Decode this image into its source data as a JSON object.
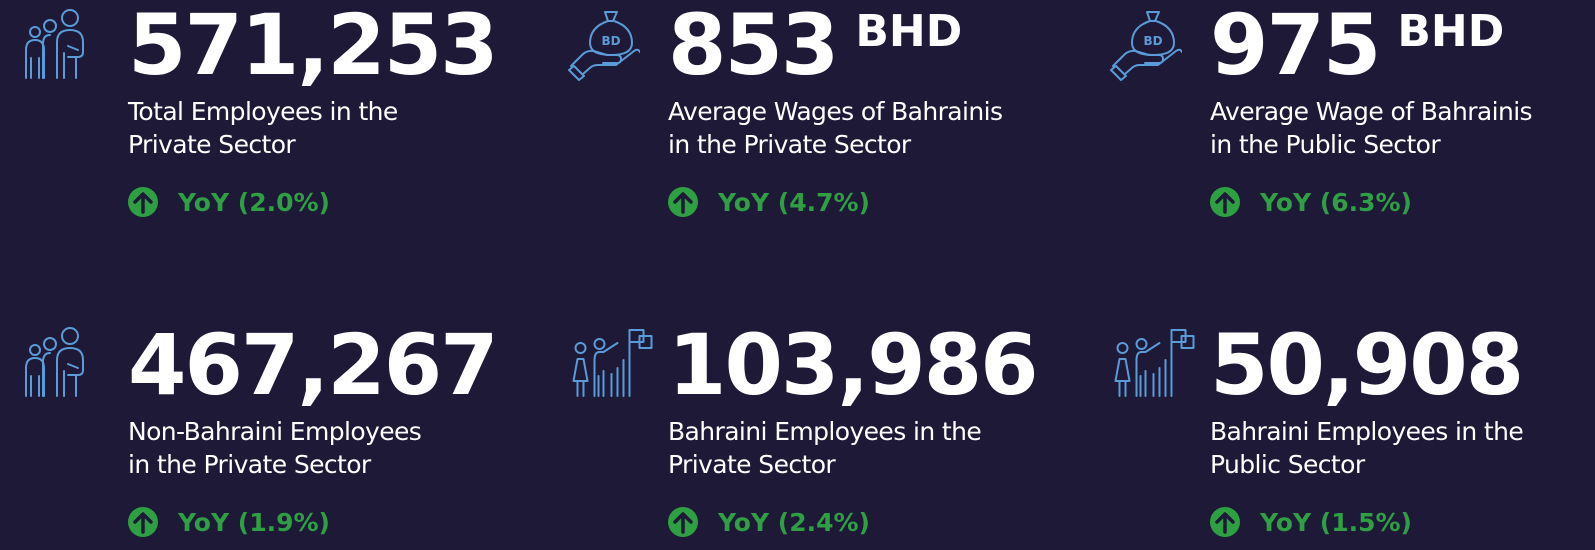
{
  "cards": [
    {
      "value": "571,253",
      "label": [
        "Total Employees in the",
        "Private Sector"
      ],
      "yoy": "YoY (2.0%)"
    },
    {
      "value": "853",
      "unit": "BHD",
      "label": [
        "Average  Wages of Bahrainis",
        "in the Private Sector"
      ],
      "yoy": "YoY (4.7%)"
    },
    {
      "value": "975",
      "unit": "BHD",
      "label": [
        "Average Wage of Bahrainis",
        "in the Public Sector"
      ],
      "yoy": "YoY (6.3%)"
    },
    {
      "value": "467,267",
      "label": [
        "Non-Bahraini Employees",
        "in the Private Sector"
      ],
      "yoy": "YoY (1.9%)"
    },
    {
      "value": "103,986",
      "label": [
        "Bahraini Employees in the",
        "Private Sector"
      ],
      "yoy": "YoY (2.4%)"
    },
    {
      "value": "50,908",
      "label": [
        "Bahraini Employees in the",
        "Public Sector"
      ],
      "yoy": "YoY (1.5%)"
    }
  ]
}
